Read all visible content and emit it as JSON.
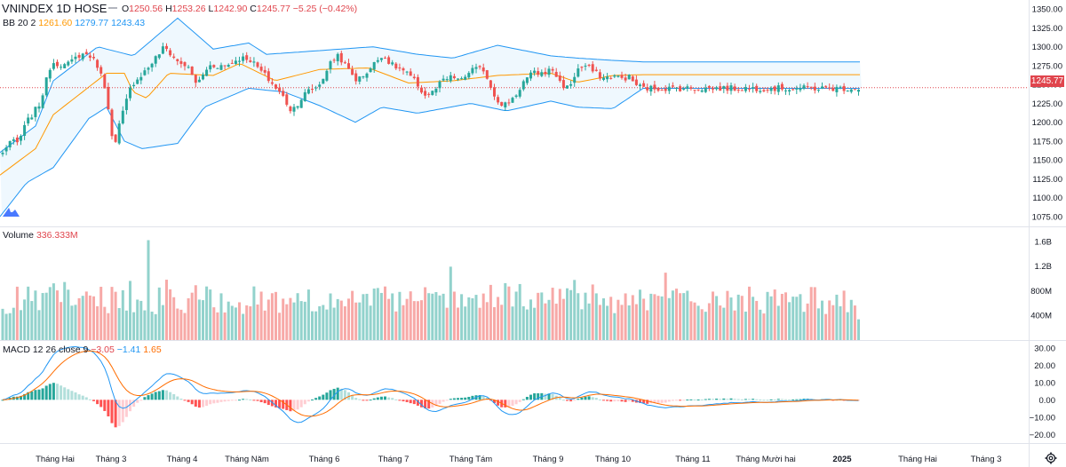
{
  "header": {
    "symbol_line": "VNINDEX  1D  HOSE",
    "ohlc": {
      "o_label": "O",
      "o": "1250.56",
      "h_label": "H",
      "h": "1253.26",
      "l_label": "L",
      "l": "1242.90",
      "c_label": "C",
      "c": "1245.77",
      "change": "−5.25 (−0.42%)"
    }
  },
  "indicators": {
    "bb": {
      "name": "BB 20 2",
      "basis": "1261.60",
      "upper": "1279.77",
      "lower": "1243.43"
    },
    "volume": {
      "name": "Volume",
      "value": "336.333M"
    },
    "macd": {
      "name": "MACD 12 26 close 9",
      "hist": "−3.05",
      "macd": "−1.41",
      "signal": "1.65"
    }
  },
  "last_price_label": "1245.77",
  "colors": {
    "up": "#26a69a",
    "down": "#ef5350",
    "bb_basis": "#ff9800",
    "bb_band": "#2196f3",
    "macd_line": "#2196f3",
    "signal_line": "#ff6d00",
    "last_price": "#e0454d"
  },
  "icons": {
    "logo": "tradingview-logo-icon",
    "settings": "gear-icon"
  },
  "chart_data": [
    {
      "type": "candlestick",
      "title": "VNINDEX",
      "ylim": [
        1062,
        1362
      ],
      "yticks": [
        "1350.00",
        "1325.00",
        "1300.00",
        "1275.00",
        "1250.00",
        "1225.00",
        "1200.00",
        "1175.00",
        "1150.00",
        "1125.00",
        "1100.00",
        "1075.00"
      ],
      "x_labels": [
        "Tháng Hai",
        "Tháng 3",
        "Tháng 4",
        "Tháng Năm",
        "Tháng 6",
        "Tháng 7",
        "Tháng Tám",
        "Tháng 9",
        "Tháng 10",
        "Tháng 11",
        "Tháng Mười hai",
        "2025",
        "Tháng Hai",
        "Tháng 3"
      ],
      "bars_shown": 236,
      "close_anchors": [
        [
          0,
          1152
        ],
        [
          10,
          1175
        ],
        [
          20,
          1172
        ],
        [
          30,
          1200
        ],
        [
          45,
          1225
        ],
        [
          58,
          1280
        ],
        [
          75,
          1275
        ],
        [
          90,
          1290
        ],
        [
          100,
          1290
        ],
        [
          110,
          1275
        ],
        [
          120,
          1240
        ],
        [
          128,
          1160
        ],
        [
          135,
          1200
        ],
        [
          148,
          1250
        ],
        [
          165,
          1270
        ],
        [
          185,
          1300
        ],
        [
          200,
          1280
        ],
        [
          210,
          1275
        ],
        [
          222,
          1250
        ],
        [
          235,
          1275
        ],
        [
          255,
          1275
        ],
        [
          270,
          1285
        ],
        [
          280,
          1285
        ],
        [
          300,
          1260
        ],
        [
          318,
          1235
        ],
        [
          328,
          1215
        ],
        [
          345,
          1240
        ],
        [
          360,
          1250
        ],
        [
          370,
          1275
        ],
        [
          380,
          1290
        ],
        [
          392,
          1270
        ],
        [
          402,
          1255
        ],
        [
          416,
          1270
        ],
        [
          430,
          1290
        ],
        [
          442,
          1275
        ],
        [
          452,
          1270
        ],
        [
          462,
          1260
        ],
        [
          470,
          1250
        ],
        [
          478,
          1235
        ],
        [
          488,
          1240
        ],
        [
          498,
          1255
        ],
        [
          510,
          1260
        ],
        [
          520,
          1255
        ],
        [
          530,
          1270
        ],
        [
          545,
          1270
        ],
        [
          553,
          1245
        ],
        [
          565,
          1220
        ],
        [
          580,
          1235
        ],
        [
          590,
          1255
        ],
        [
          600,
          1265
        ],
        [
          610,
          1265
        ],
        [
          622,
          1270
        ],
        [
          632,
          1250
        ],
        [
          640,
          1245
        ],
        [
          650,
          1270
        ],
        [
          660,
          1275
        ],
        [
          670,
          1265
        ],
        [
          680,
          1258
        ],
        [
          690,
          1262
        ],
        [
          700,
          1258
        ],
        [
          708,
          1260
        ],
        [
          716,
          1250
        ],
        [
          724,
          1245
        ]
      ],
      "series": [
        {
          "name": "BB basis",
          "values": [
            [
              0,
              1130
            ],
            [
              40,
              1165
            ],
            [
              60,
              1210
            ],
            [
              120,
              1265
            ],
            [
              140,
              1265
            ],
            [
              150,
              1240
            ],
            [
              165,
              1232
            ],
            [
              190,
              1265
            ],
            [
              240,
              1262
            ],
            [
              270,
              1278
            ],
            [
              310,
              1255
            ],
            [
              360,
              1270
            ],
            [
              415,
              1272
            ],
            [
              460,
              1252
            ],
            [
              510,
              1255
            ],
            [
              560,
              1262
            ],
            [
              620,
              1265
            ],
            [
              650,
              1253
            ],
            [
              690,
              1262
            ],
            [
              724,
              1263
            ]
          ]
        },
        {
          "name": "BB upper",
          "values": [
            [
              0,
              1160
            ],
            [
              40,
              1195
            ],
            [
              60,
              1255
            ],
            [
              110,
              1300
            ],
            [
              150,
              1288
            ],
            [
              200,
              1338
            ],
            [
              240,
              1297
            ],
            [
              280,
              1305
            ],
            [
              300,
              1290
            ],
            [
              360,
              1295
            ],
            [
              420,
              1300
            ],
            [
              470,
              1290
            ],
            [
              510,
              1285
            ],
            [
              560,
              1302
            ],
            [
              620,
              1288
            ],
            [
              650,
              1285
            ],
            [
              690,
              1282
            ],
            [
              724,
              1280
            ]
          ]
        },
        {
          "name": "BB lower",
          "values": [
            [
              0,
              1075
            ],
            [
              30,
              1120
            ],
            [
              60,
              1140
            ],
            [
              100,
              1205
            ],
            [
              120,
              1220
            ],
            [
              140,
              1175
            ],
            [
              160,
              1165
            ],
            [
              200,
              1172
            ],
            [
              230,
              1220
            ],
            [
              280,
              1245
            ],
            [
              320,
              1240
            ],
            [
              360,
              1222
            ],
            [
              400,
              1200
            ],
            [
              430,
              1220
            ],
            [
              470,
              1212
            ],
            [
              530,
              1225
            ],
            [
              570,
              1215
            ],
            [
              620,
              1228
            ],
            [
              650,
              1220
            ],
            [
              690,
              1218
            ],
            [
              724,
              1245
            ]
          ]
        }
      ],
      "last_price": 1245.77
    },
    {
      "type": "bar",
      "title": "Volume",
      "ylim": [
        0,
        1800000000
      ],
      "yticks": [
        "1.6B",
        "1.2B",
        "800M",
        "400M"
      ],
      "series": [
        {
          "name": "Volume",
          "summary": "daily volume ~400M–1.6B, latest 336.333M",
          "last": 336333000
        }
      ]
    },
    {
      "type": "line",
      "title": "MACD 12 26 close 9",
      "ylim": [
        -25,
        32
      ],
      "yticks": [
        "30.00",
        "20.00",
        "10.00",
        "0.00",
        "-10.00",
        "-20.00"
      ],
      "series": [
        {
          "name": "MACD",
          "last": -1.41
        },
        {
          "name": "Signal",
          "last": 1.65
        },
        {
          "name": "Histogram",
          "last": -3.05
        }
      ]
    }
  ]
}
